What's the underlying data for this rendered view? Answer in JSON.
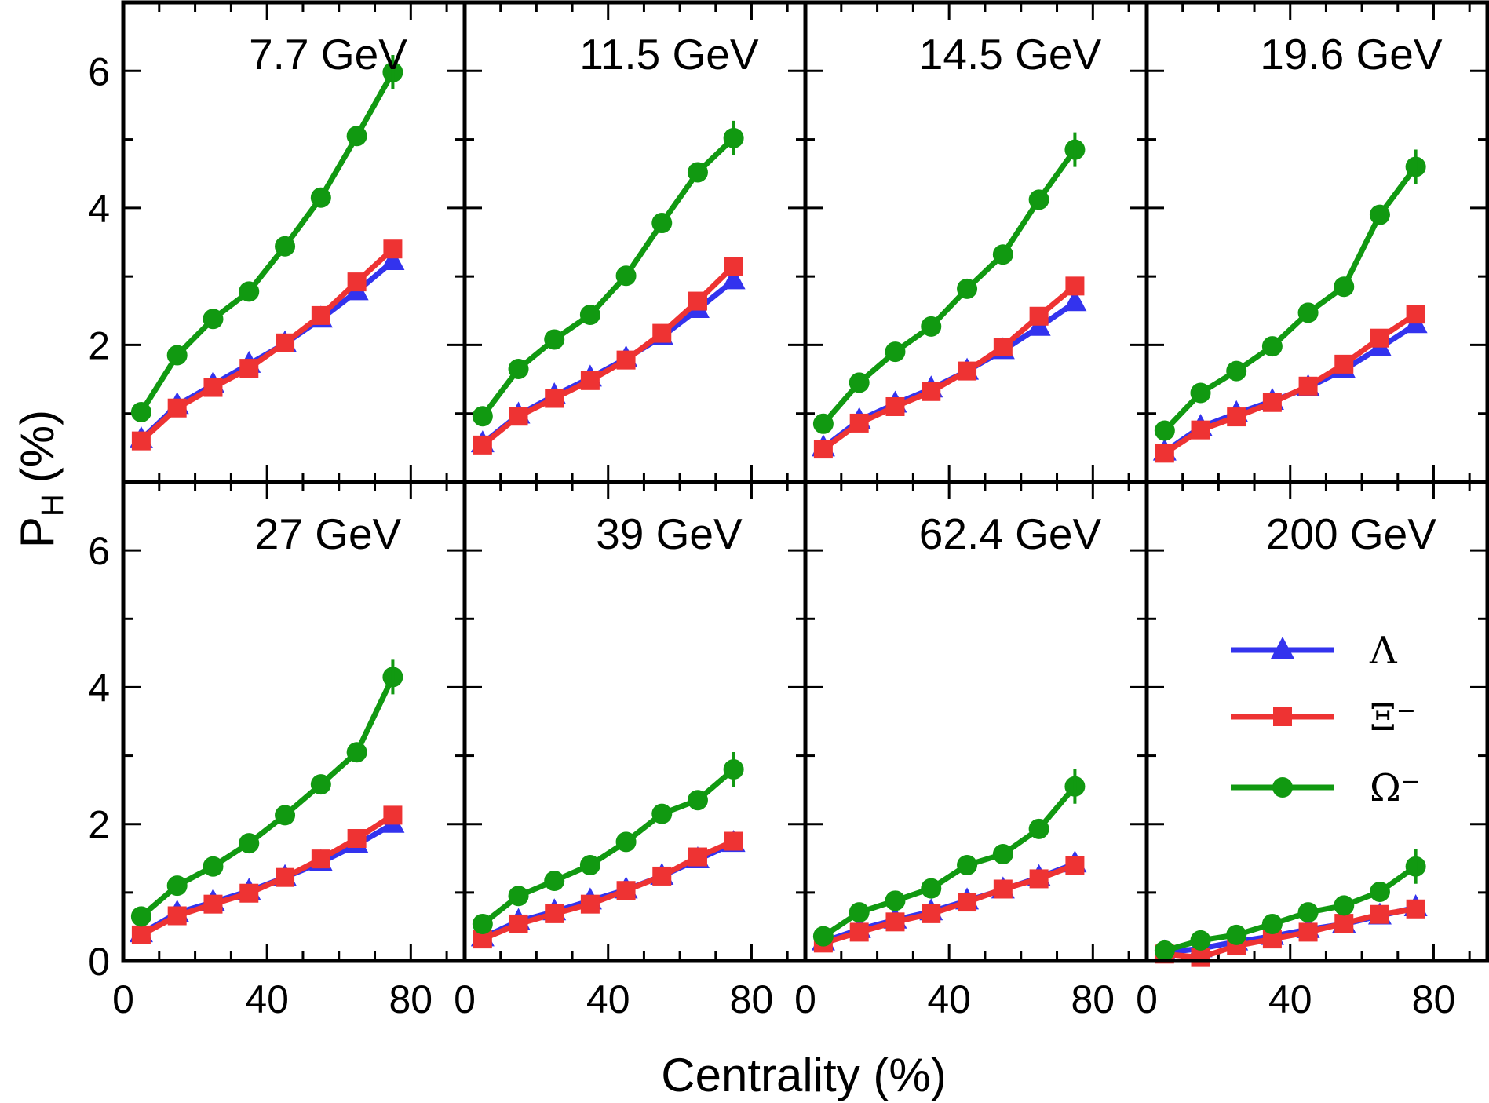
{
  "chart_data": {
    "type": "line",
    "title": "",
    "xlabel": "Centrality (%)",
    "ylabel": "P_H (%)",
    "ylabel_main": "P",
    "ylabel_sub": "H",
    "ylabel_suffix": "(%)",
    "xlim": [
      0,
      95
    ],
    "ylim": [
      0,
      7
    ],
    "x_ticks": [
      "0",
      "40",
      "80"
    ],
    "y_ticks": [
      "0",
      "2",
      "4",
      "6"
    ],
    "x": [
      5,
      15,
      25,
      35,
      45,
      55,
      65,
      75
    ],
    "legend": [
      {
        "name": "Λ",
        "color": "#3333ee",
        "marker": "triangle"
      },
      {
        "name": "Ξ⁻",
        "color": "#ee3333",
        "marker": "square"
      },
      {
        "name": "Ω⁻",
        "color": "#119911",
        "marker": "circle"
      }
    ],
    "panels": [
      {
        "label": "7.7 GeV",
        "series": [
          {
            "name": "Λ",
            "values": [
              0.62,
              1.12,
              1.42,
              1.72,
              2.02,
              2.38,
              2.78,
              3.22
            ]
          },
          {
            "name": "Ξ⁻",
            "values": [
              0.6,
              1.08,
              1.38,
              1.66,
              2.03,
              2.43,
              2.92,
              3.4
            ]
          },
          {
            "name": "Ω⁻",
            "values": [
              1.02,
              1.85,
              2.38,
              2.78,
              3.44,
              4.15,
              5.05,
              5.98
            ]
          }
        ]
      },
      {
        "label": "11.5 GeV",
        "series": [
          {
            "name": "Λ",
            "values": [
              0.56,
              0.98,
              1.26,
              1.52,
              1.8,
              2.12,
              2.52,
              2.94
            ]
          },
          {
            "name": "Ξ⁻",
            "values": [
              0.54,
              0.96,
              1.22,
              1.48,
              1.78,
              2.17,
              2.64,
              3.15
            ]
          },
          {
            "name": "Ω⁻",
            "values": [
              0.96,
              1.65,
              2.08,
              2.44,
              3.01,
              3.78,
              4.52,
              5.02
            ]
          }
        ]
      },
      {
        "label": "14.5 GeV",
        "series": [
          {
            "name": "Λ",
            "values": [
              0.5,
              0.9,
              1.14,
              1.36,
              1.62,
              1.92,
              2.26,
              2.62
            ]
          },
          {
            "name": "Ξ⁻",
            "values": [
              0.48,
              0.86,
              1.1,
              1.32,
              1.62,
              1.97,
              2.42,
              2.86
            ]
          },
          {
            "name": "Ω⁻",
            "values": [
              0.85,
              1.45,
              1.9,
              2.27,
              2.82,
              3.32,
              4.12,
              4.85
            ]
          }
        ]
      },
      {
        "label": "19.6 GeV",
        "series": [
          {
            "name": "Λ",
            "values": [
              0.44,
              0.8,
              1.0,
              1.18,
              1.38,
              1.64,
              1.96,
              2.3
            ]
          },
          {
            "name": "Ξ⁻",
            "values": [
              0.42,
              0.76,
              0.95,
              1.16,
              1.4,
              1.72,
              2.1,
              2.45
            ]
          },
          {
            "name": "Ω⁻",
            "values": [
              0.75,
              1.3,
              1.62,
              1.98,
              2.47,
              2.85,
              3.9,
              4.6
            ]
          }
        ]
      },
      {
        "label": "27 GeV",
        "series": [
          {
            "name": "Λ",
            "values": [
              0.4,
              0.7,
              0.86,
              1.02,
              1.22,
              1.44,
              1.7,
              2.0
            ]
          },
          {
            "name": "Ξ⁻",
            "values": [
              0.38,
              0.66,
              0.83,
              0.99,
              1.22,
              1.49,
              1.79,
              2.13
            ]
          },
          {
            "name": "Ω⁻",
            "values": [
              0.65,
              1.1,
              1.38,
              1.72,
              2.13,
              2.58,
              3.05,
              4.15
            ]
          }
        ]
      },
      {
        "label": "39 GeV",
        "series": [
          {
            "name": "Λ",
            "values": [
              0.34,
              0.58,
              0.72,
              0.88,
              1.04,
              1.24,
              1.48,
              1.72
            ]
          },
          {
            "name": "Ξ⁻",
            "values": [
              0.32,
              0.54,
              0.69,
              0.83,
              1.03,
              1.24,
              1.52,
              1.75
            ]
          },
          {
            "name": "Ω⁻",
            "values": [
              0.54,
              0.95,
              1.17,
              1.4,
              1.74,
              2.15,
              2.35,
              2.8
            ]
          }
        ]
      },
      {
        "label": "62.4 GeV",
        "series": [
          {
            "name": "Λ",
            "values": [
              0.28,
              0.46,
              0.6,
              0.72,
              0.88,
              1.04,
              1.22,
              1.42
            ]
          },
          {
            "name": "Ξ⁻",
            "values": [
              0.26,
              0.42,
              0.57,
              0.69,
              0.86,
              1.05,
              1.2,
              1.4
            ]
          },
          {
            "name": "Ω⁻",
            "values": [
              0.36,
              0.71,
              0.88,
              1.06,
              1.4,
              1.56,
              1.93,
              2.55
            ]
          }
        ]
      },
      {
        "label": "200 GeV",
        "series": [
          {
            "name": "Λ",
            "values": [
              0.12,
              0.18,
              0.28,
              0.36,
              0.46,
              0.54,
              0.66,
              0.78
            ]
          },
          {
            "name": "Ξ⁻",
            "values": [
              0.1,
              0.05,
              0.22,
              0.32,
              0.42,
              0.55,
              0.68,
              0.76
            ]
          },
          {
            "name": "Ω⁻",
            "values": [
              0.15,
              0.3,
              0.38,
              0.54,
              0.71,
              0.81,
              1.01,
              1.38
            ]
          }
        ]
      }
    ]
  },
  "colors": {
    "lambda": "#3333ee",
    "xi": "#ee3333",
    "omega": "#119911",
    "axis": "#000000"
  }
}
